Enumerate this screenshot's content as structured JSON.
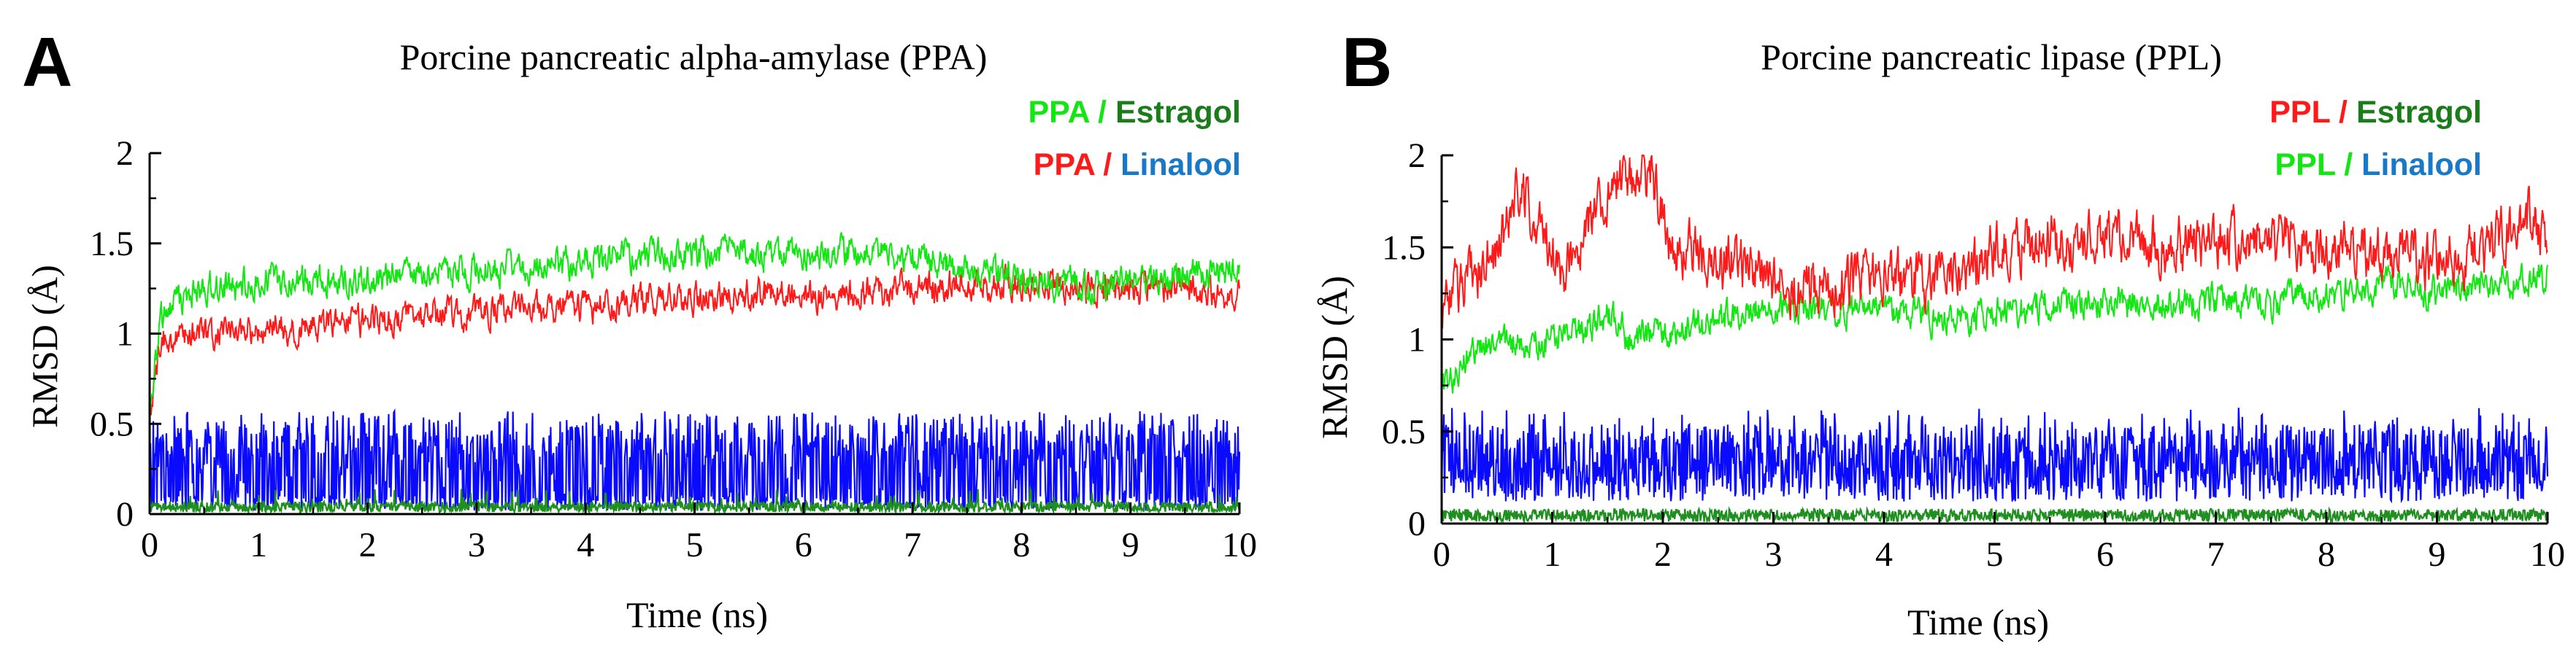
{
  "colors": {
    "ppa_estragol": "#14e614",
    "ppa_linalool": "#ff1a1a",
    "ppl_estragol": "#ff1a1a",
    "ppl_linalool": "#14e614",
    "estragol_word": "#1a7d1a",
    "linalool_word": "#1a78c8",
    "blue_trace": "#0a0aff",
    "green_trace": "#1f8f1f"
  },
  "chart_data": [
    {
      "type": "line",
      "panel_label": "A",
      "title": "Porcine pancreatic alpha-amylase (PPA)",
      "xlabel": "Time (ns)",
      "ylabel": "RMSD (Å)",
      "xlim": [
        0,
        10
      ],
      "ylim": [
        0,
        2
      ],
      "xticks": [
        "0",
        "1",
        "2",
        "3",
        "4",
        "5",
        "6",
        "7",
        "8",
        "9",
        "10"
      ],
      "yticks": [
        "0",
        "0.5",
        "1",
        "1.5",
        "2"
      ],
      "legend": [
        {
          "enzyme": "PPA",
          "slash": "/",
          "ligand": "Estragol",
          "enzyme_color_key": "ppa_estragol",
          "ligand_color_key": "estragol_word"
        },
        {
          "enzyme": "PPA",
          "slash": "/",
          "ligand": "Linalool",
          "enzyme_color_key": "ppa_linalool",
          "ligand_color_key": "linalool_word"
        }
      ],
      "series": [
        {
          "name": "PPA / Estragol (protein)",
          "color_key": "ppa_estragol",
          "x": [
            0,
            0.1,
            0.3,
            0.5,
            1,
            1.5,
            2,
            2.5,
            3,
            3.5,
            4,
            4.5,
            5,
            5.5,
            6,
            6.5,
            7,
            7.5,
            8,
            8.5,
            9,
            9.5,
            10
          ],
          "values": [
            0.55,
            1.1,
            1.2,
            1.25,
            1.28,
            1.3,
            1.3,
            1.33,
            1.35,
            1.38,
            1.4,
            1.42,
            1.45,
            1.45,
            1.43,
            1.45,
            1.42,
            1.35,
            1.3,
            1.28,
            1.28,
            1.3,
            1.35
          ]
        },
        {
          "name": "PPA / Linalool (protein)",
          "color_key": "ppa_linalool",
          "x": [
            0,
            0.1,
            0.3,
            0.5,
            1,
            1.5,
            2,
            2.5,
            3,
            3.5,
            4,
            4.5,
            5,
            5.5,
            6,
            6.5,
            7,
            7.5,
            8,
            8.5,
            9,
            9.5,
            10
          ],
          "values": [
            0.55,
            0.95,
            1.0,
            1.0,
            1.02,
            1.05,
            1.08,
            1.1,
            1.12,
            1.12,
            1.15,
            1.18,
            1.2,
            1.22,
            1.2,
            1.22,
            1.25,
            1.28,
            1.28,
            1.25,
            1.25,
            1.25,
            1.2
          ]
        },
        {
          "name": "Linalool (ligand)",
          "color_key": "blue_trace",
          "x": [
            0,
            10
          ],
          "values": [
            0.25,
            0.3
          ]
        },
        {
          "name": "Estragol (ligand)",
          "color_key": "green_trace",
          "x": [
            0,
            10
          ],
          "values": [
            0.03,
            0.03
          ]
        }
      ]
    },
    {
      "type": "line",
      "panel_label": "B",
      "title": "Porcine pancreatic lipase (PPL)",
      "xlabel": "Time (ns)",
      "ylabel": "RMSD (Å)",
      "xlim": [
        0,
        10
      ],
      "ylim": [
        0,
        2
      ],
      "xticks": [
        "0",
        "1",
        "2",
        "3",
        "4",
        "5",
        "6",
        "7",
        "8",
        "9",
        "10"
      ],
      "yticks": [
        "0",
        "0.5",
        "1",
        "1.5",
        "2"
      ],
      "legend": [
        {
          "enzyme": "PPL",
          "slash": "/",
          "ligand": "Estragol",
          "enzyme_color_key": "ppl_estragol",
          "ligand_color_key": "estragol_word"
        },
        {
          "enzyme": "PPL",
          "slash": "/",
          "ligand": "Linalool",
          "enzyme_color_key": "ppl_linalool",
          "ligand_color_key": "linalool_word"
        }
      ],
      "series": [
        {
          "name": "PPL / Estragol (protein)",
          "color_key": "ppl_estragol",
          "x": [
            0,
            0.2,
            0.5,
            0.7,
            0.9,
            1.1,
            1.3,
            1.6,
            1.9,
            2.1,
            2.5,
            3,
            3.5,
            4,
            4.5,
            5,
            5.5,
            6,
            6.5,
            7,
            7.5,
            8,
            8.5,
            9,
            9.5,
            9.8,
            10
          ],
          "values": [
            1.15,
            1.3,
            1.5,
            1.8,
            1.6,
            1.3,
            1.6,
            1.85,
            1.9,
            1.5,
            1.45,
            1.3,
            1.3,
            1.35,
            1.3,
            1.5,
            1.55,
            1.55,
            1.5,
            1.55,
            1.55,
            1.5,
            1.45,
            1.4,
            1.5,
            1.7,
            1.5
          ]
        },
        {
          "name": "PPL / Linalool (protein)",
          "color_key": "ppl_linalool",
          "x": [
            0,
            0.2,
            0.5,
            0.8,
            1,
            1.3,
            1.5,
            1.7,
            2,
            2.5,
            3,
            3.5,
            4,
            4.5,
            5,
            5.5,
            6,
            6.5,
            7,
            7.5,
            8,
            8.5,
            9,
            9.5,
            10
          ],
          "values": [
            0.7,
            0.9,
            1.0,
            0.95,
            1.0,
            1.05,
            1.15,
            1.0,
            1.05,
            1.1,
            1.2,
            1.15,
            1.15,
            1.1,
            1.15,
            1.2,
            1.2,
            1.2,
            1.2,
            1.2,
            1.25,
            1.3,
            1.25,
            1.3,
            1.35
          ]
        },
        {
          "name": "Linalool (ligand)",
          "color_key": "blue_trace",
          "x": [
            0,
            10
          ],
          "values": [
            0.28,
            0.28
          ]
        },
        {
          "name": "Estragol (ligand)",
          "color_key": "green_trace",
          "x": [
            0,
            10
          ],
          "values": [
            0.05,
            0.05
          ]
        }
      ]
    }
  ]
}
